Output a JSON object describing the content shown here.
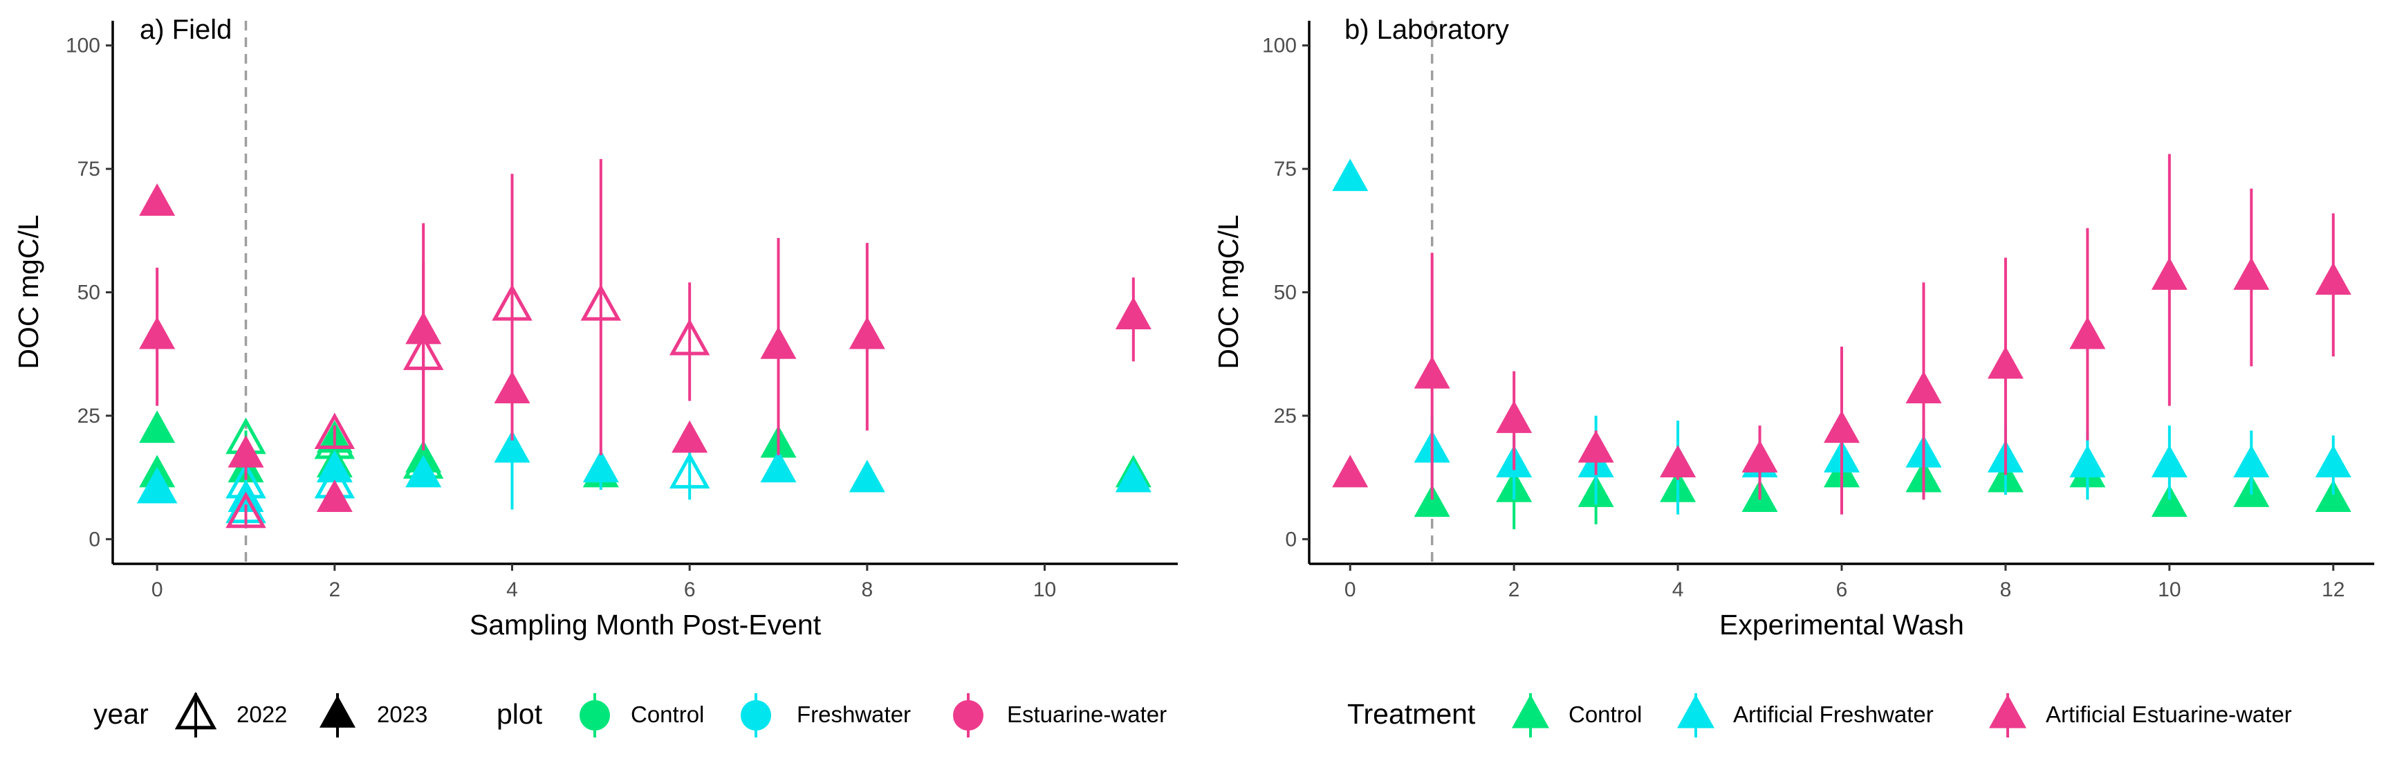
{
  "chart_data": [
    {
      "type": "scatter",
      "title": "a) Field",
      "xlabel": "Sampling Month Post-Event",
      "ylabel": "DOC mgC/L",
      "xlim": [
        -0.5,
        11.5
      ],
      "ylim": [
        -5,
        105
      ],
      "xticks": [
        "0",
        "2",
        "4",
        "6",
        "8",
        "10"
      ],
      "yticks": [
        "0",
        "25",
        "50",
        "75",
        "100"
      ],
      "ref_line_x": 1,
      "shape_legend": {
        "title": "year",
        "items": [
          {
            "label": "2022",
            "fill": "hollow"
          },
          {
            "label": "2023",
            "fill": "solid"
          }
        ]
      },
      "color_legend": {
        "title": "plot",
        "items": [
          {
            "label": "Control",
            "color": "#00E67A"
          },
          {
            "label": "Freshwater",
            "color": "#00E5EE"
          },
          {
            "label": "Estuarine-water",
            "color": "#EE3A8C"
          }
        ]
      },
      "series": [
        {
          "group": "Control",
          "color": "#00E67A",
          "year": "2023",
          "points": [
            {
              "x": 0,
              "y": 22,
              "lo": 20,
              "hi": 25
            },
            {
              "x": 0,
              "y": 13,
              "lo": 11,
              "hi": 15
            },
            {
              "x": 1,
              "y": 14,
              "lo": 9,
              "hi": 21
            },
            {
              "x": 2,
              "y": 20,
              "lo": 16,
              "hi": 23
            },
            {
              "x": 2,
              "y": 15,
              "lo": 12,
              "hi": 17
            },
            {
              "x": 3,
              "y": 16,
              "lo": 13,
              "hi": 19
            },
            {
              "x": 5,
              "y": 13,
              "lo": 12,
              "hi": 15
            },
            {
              "x": 7,
              "y": 19,
              "lo": 17,
              "hi": 21
            },
            {
              "x": 11,
              "y": 13,
              "lo": 12,
              "hi": 14
            }
          ]
        },
        {
          "group": "Control",
          "color": "#00E67A",
          "year": "2022",
          "points": [
            {
              "x": 1,
              "y": 20,
              "lo": 18,
              "hi": 22
            },
            {
              "x": 2,
              "y": 19,
              "lo": 17,
              "hi": 21
            },
            {
              "x": 3,
              "y": 15,
              "lo": 13,
              "hi": 17
            }
          ]
        },
        {
          "group": "Freshwater",
          "color": "#00E5EE",
          "year": "2023",
          "points": [
            {
              "x": 0,
              "y": 10,
              "lo": 8,
              "hi": 12
            },
            {
              "x": 1,
              "y": 8,
              "lo": 6,
              "hi": 10
            },
            {
              "x": 2,
              "y": 14,
              "lo": 12,
              "hi": 16
            },
            {
              "x": 3,
              "y": 13,
              "lo": 11,
              "hi": 15
            },
            {
              "x": 4,
              "y": 18,
              "lo": 6,
              "hi": 28
            },
            {
              "x": 5,
              "y": 14,
              "lo": 10,
              "hi": 18
            },
            {
              "x": 7,
              "y": 14,
              "lo": 12,
              "hi": 16
            },
            {
              "x": 8,
              "y": 12,
              "lo": 10,
              "hi": 13
            },
            {
              "x": 11,
              "y": 12,
              "lo": 11,
              "hi": 13
            }
          ]
        },
        {
          "group": "Freshwater",
          "color": "#00E5EE",
          "year": "2022",
          "points": [
            {
              "x": 0,
              "y": 10,
              "lo": 9,
              "hi": 11
            },
            {
              "x": 1,
              "y": 6,
              "lo": 4,
              "hi": 8
            },
            {
              "x": 1,
              "y": 11,
              "lo": 9,
              "hi": 13
            },
            {
              "x": 2,
              "y": 11,
              "lo": 10,
              "hi": 12
            },
            {
              "x": 6,
              "y": 13,
              "lo": 8,
              "hi": 18
            }
          ]
        },
        {
          "group": "Estuarine-water",
          "color": "#EE3A8C",
          "year": "2023",
          "points": [
            {
              "x": 0,
              "y": 68,
              "lo": 66,
              "hi": 70
            },
            {
              "x": 0,
              "y": 41,
              "lo": 27,
              "hi": 55
            },
            {
              "x": 1,
              "y": 17,
              "lo": 12,
              "hi": 20
            },
            {
              "x": 2,
              "y": 8,
              "lo": 6,
              "hi": 10
            },
            {
              "x": 3,
              "y": 42,
              "lo": 20,
              "hi": 64
            },
            {
              "x": 4,
              "y": 30,
              "lo": 22,
              "hi": 38
            },
            {
              "x": 6,
              "y": 20,
              "lo": 18,
              "hi": 22
            },
            {
              "x": 7,
              "y": 39,
              "lo": 17,
              "hi": 61
            },
            {
              "x": 8,
              "y": 41,
              "lo": 22,
              "hi": 60
            },
            {
              "x": 11,
              "y": 45,
              "lo": 36,
              "hi": 53
            }
          ]
        },
        {
          "group": "Estuarine-water",
          "color": "#EE3A8C",
          "year": "2022",
          "points": [
            {
              "x": 1,
              "y": 5,
              "lo": 3,
              "hi": 7
            },
            {
              "x": 2,
              "y": 21,
              "lo": 19,
              "hi": 23
            },
            {
              "x": 3,
              "y": 37,
              "lo": 18,
              "hi": 56
            },
            {
              "x": 4,
              "y": 47,
              "lo": 20,
              "hi": 74
            },
            {
              "x": 5,
              "y": 47,
              "lo": 17,
              "hi": 77
            },
            {
              "x": 6,
              "y": 40,
              "lo": 28,
              "hi": 52
            }
          ]
        }
      ]
    },
    {
      "type": "scatter",
      "title": "b) Laboratory",
      "xlabel": "Experimental Wash",
      "ylabel": "DOC mgC/L",
      "xlim": [
        -0.5,
        12.5
      ],
      "ylim": [
        -5,
        105
      ],
      "xticks": [
        "0",
        "2",
        "4",
        "6",
        "8",
        "10",
        "12"
      ],
      "yticks": [
        "0",
        "25",
        "50",
        "75",
        "100"
      ],
      "ref_line_x": 1,
      "legend": {
        "title": "Treatment",
        "items": [
          {
            "label": "Control",
            "color": "#00E67A"
          },
          {
            "label": "Artificial Freshwater",
            "color": "#00E5EE"
          },
          {
            "label": "Artificial Estuarine-water",
            "color": "#EE3A8C"
          }
        ]
      },
      "series": [
        {
          "name": "Control",
          "color": "#00E67A",
          "points": [
            {
              "x": 1,
              "y": 7,
              "lo": 5,
              "hi": 9
            },
            {
              "x": 2,
              "y": 10,
              "lo": 2,
              "hi": 17
            },
            {
              "x": 3,
              "y": 9,
              "lo": 3,
              "hi": 14
            },
            {
              "x": 4,
              "y": 10,
              "lo": 8,
              "hi": 12
            },
            {
              "x": 5,
              "y": 8,
              "lo": 6,
              "hi": 10
            },
            {
              "x": 6,
              "y": 13,
              "lo": 10,
              "hi": 16
            },
            {
              "x": 7,
              "y": 12,
              "lo": 8,
              "hi": 16
            },
            {
              "x": 8,
              "y": 12,
              "lo": 9,
              "hi": 15
            },
            {
              "x": 9,
              "y": 13,
              "lo": 10,
              "hi": 16
            },
            {
              "x": 10,
              "y": 7,
              "lo": 5,
              "hi": 9
            },
            {
              "x": 11,
              "y": 9,
              "lo": 7,
              "hi": 11
            },
            {
              "x": 12,
              "y": 8,
              "lo": 6,
              "hi": 10
            }
          ]
        },
        {
          "name": "Artificial Freshwater",
          "color": "#00E5EE",
          "points": [
            {
              "x": 0,
              "y": 73,
              "lo": 73,
              "hi": 73
            },
            {
              "x": 1,
              "y": 18,
              "lo": 11,
              "hi": 25
            },
            {
              "x": 2,
              "y": 15,
              "lo": 8,
              "hi": 21
            },
            {
              "x": 3,
              "y": 15,
              "lo": 7,
              "hi": 25
            },
            {
              "x": 4,
              "y": 15,
              "lo": 5,
              "hi": 24
            },
            {
              "x": 5,
              "y": 15,
              "lo": 10,
              "hi": 20
            },
            {
              "x": 6,
              "y": 16,
              "lo": 8,
              "hi": 22
            },
            {
              "x": 7,
              "y": 17,
              "lo": 9,
              "hi": 24
            },
            {
              "x": 8,
              "y": 16,
              "lo": 9,
              "hi": 23
            },
            {
              "x": 9,
              "y": 15,
              "lo": 8,
              "hi": 22
            },
            {
              "x": 10,
              "y": 15,
              "lo": 8,
              "hi": 23
            },
            {
              "x": 11,
              "y": 15,
              "lo": 9,
              "hi": 22
            },
            {
              "x": 12,
              "y": 15,
              "lo": 9,
              "hi": 21
            }
          ]
        },
        {
          "name": "Artificial Estuarine-water",
          "color": "#EE3A8C",
          "points": [
            {
              "x": 0,
              "y": 13,
              "lo": 13,
              "hi": 13
            },
            {
              "x": 1,
              "y": 33,
              "lo": 8,
              "hi": 58
            },
            {
              "x": 2,
              "y": 24,
              "lo": 14,
              "hi": 34
            },
            {
              "x": 3,
              "y": 18,
              "lo": 13,
              "hi": 22
            },
            {
              "x": 4,
              "y": 15,
              "lo": 12,
              "hi": 18
            },
            {
              "x": 5,
              "y": 16,
              "lo": 8,
              "hi": 23
            },
            {
              "x": 6,
              "y": 22,
              "lo": 5,
              "hi": 39
            },
            {
              "x": 7,
              "y": 30,
              "lo": 8,
              "hi": 52
            },
            {
              "x": 8,
              "y": 35,
              "lo": 13,
              "hi": 57
            },
            {
              "x": 9,
              "y": 41,
              "lo": 20,
              "hi": 63
            },
            {
              "x": 10,
              "y": 53,
              "lo": 27,
              "hi": 78
            },
            {
              "x": 11,
              "y": 53,
              "lo": 35,
              "hi": 71
            },
            {
              "x": 12,
              "y": 52,
              "lo": 37,
              "hi": 66
            }
          ]
        }
      ]
    }
  ]
}
